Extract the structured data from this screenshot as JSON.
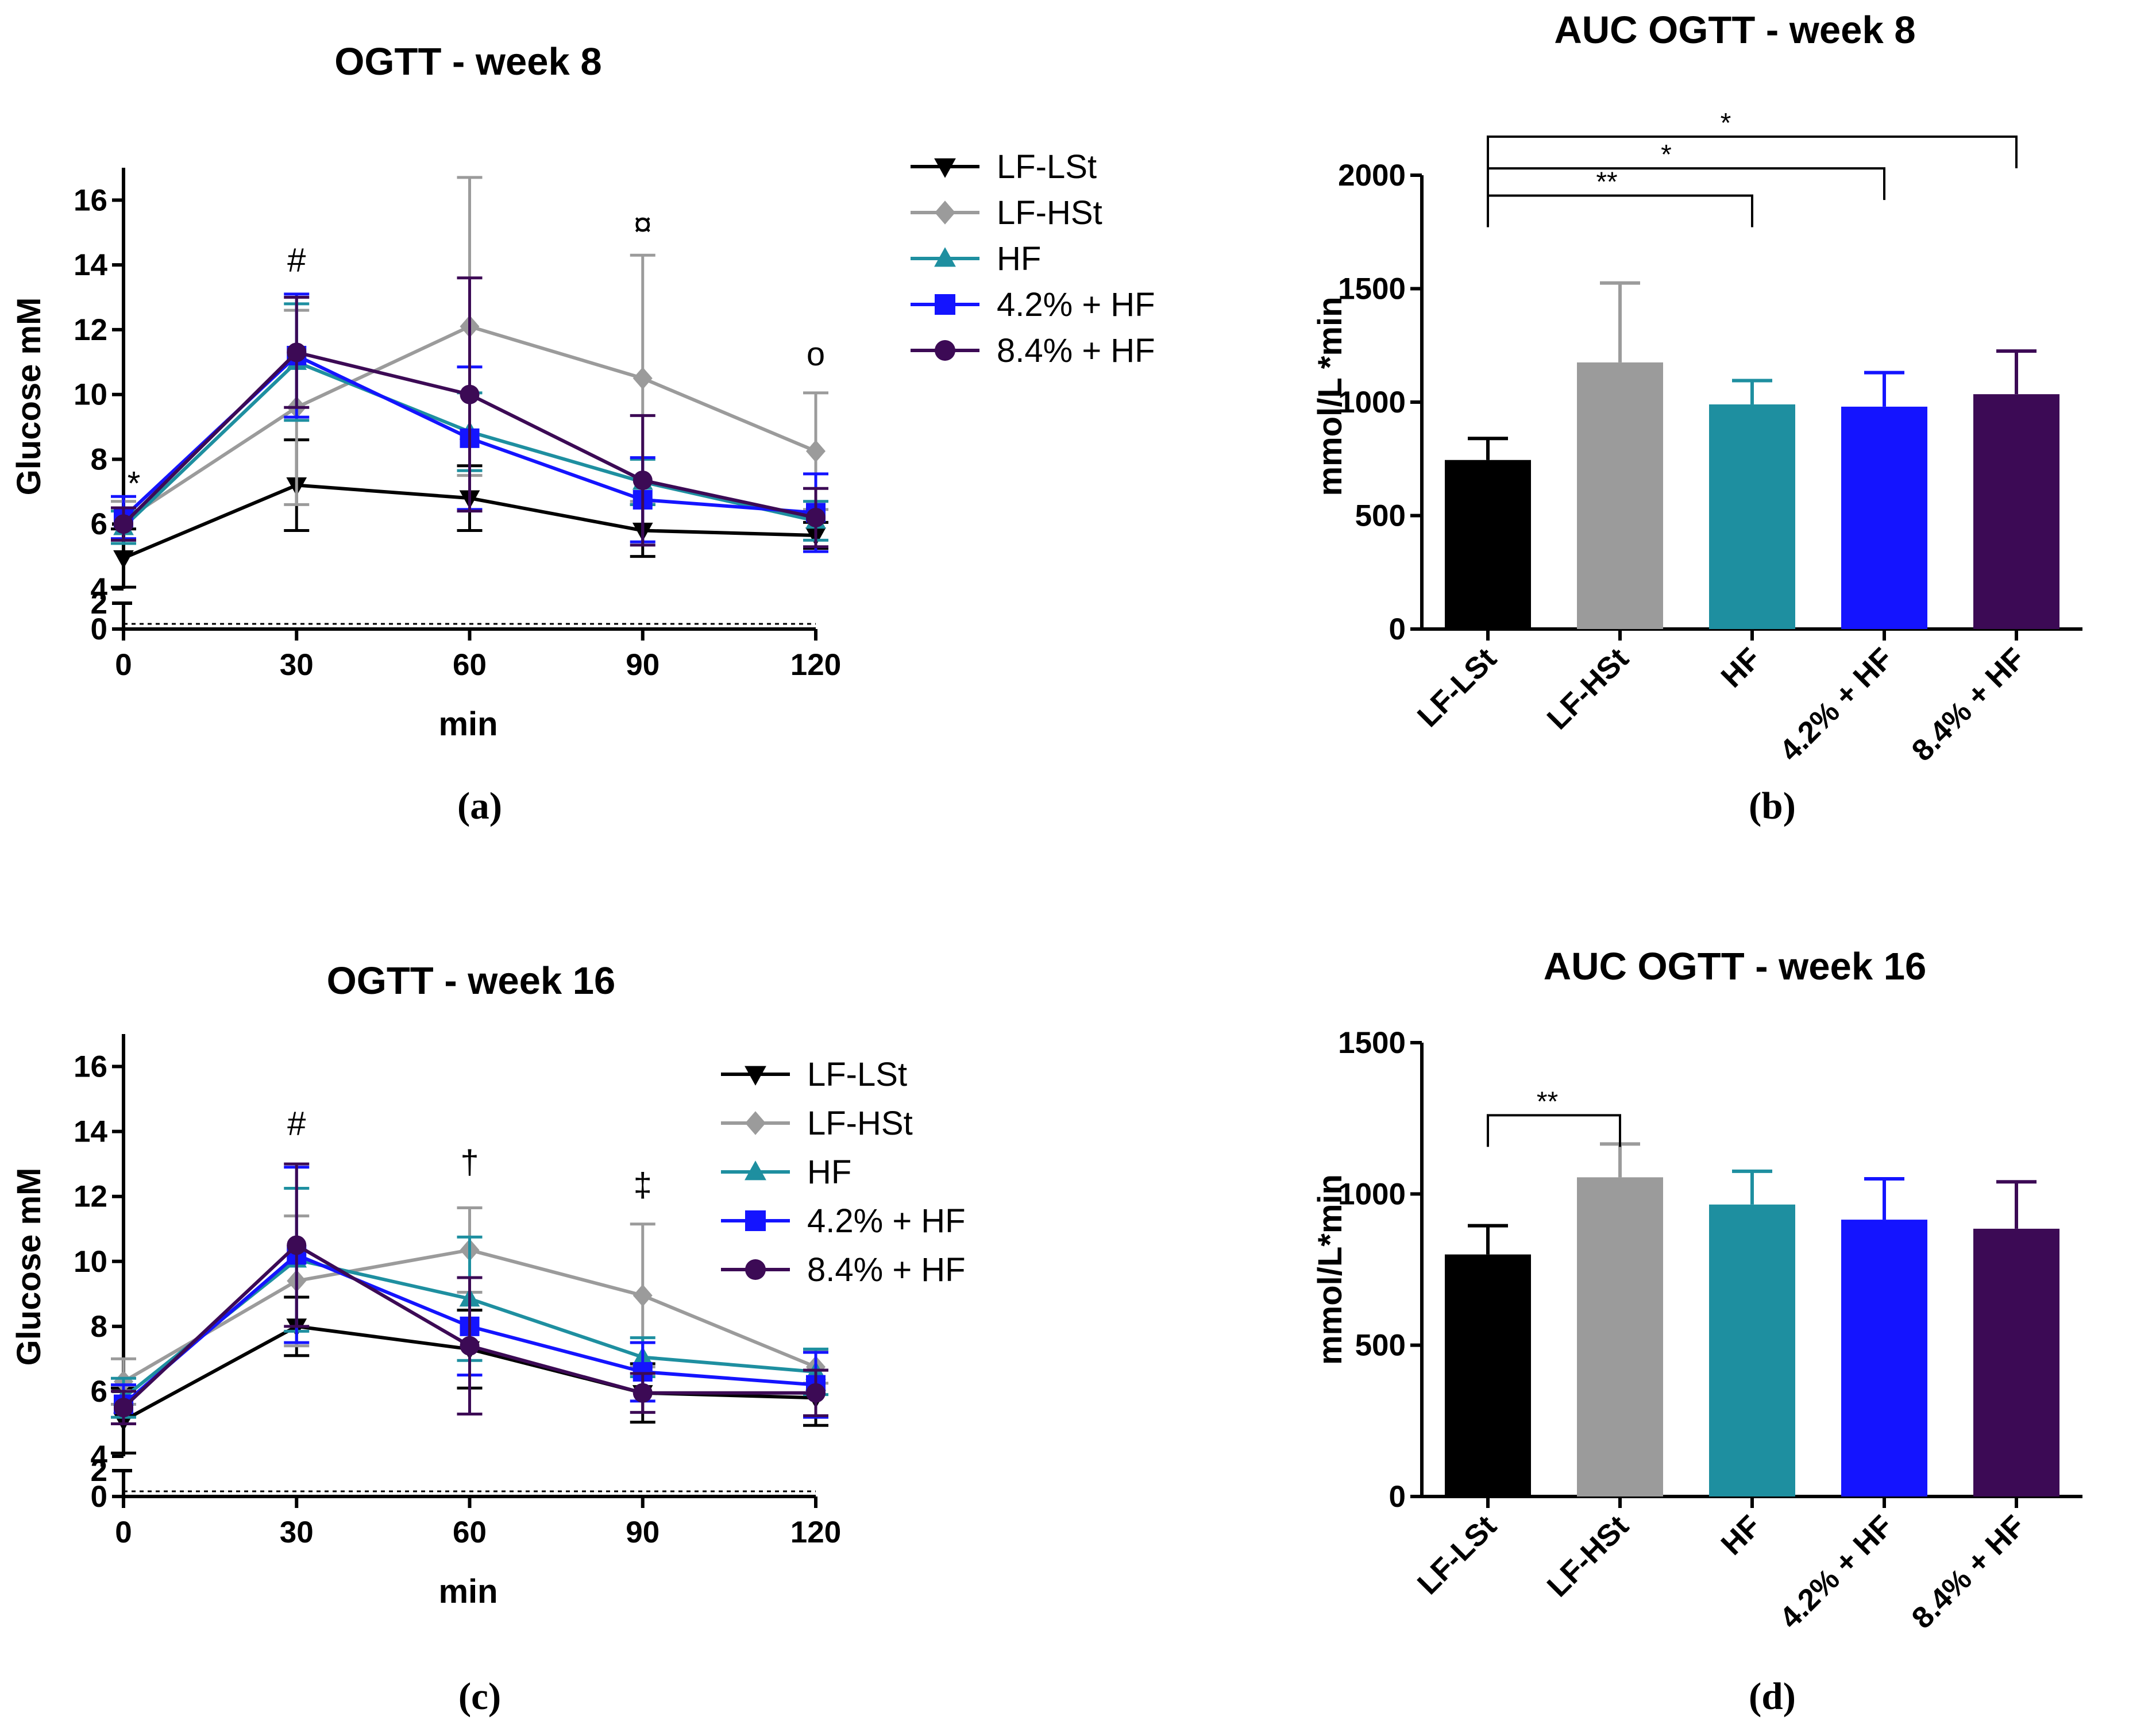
{
  "series_colors": {
    "LF-LSt": "#000000",
    "LF-HSt": "#9b9b9b",
    "HF": "#1e8fa0",
    "4.2% + HF": "#1414ff",
    "8.4% + HF": "#3c0a55"
  },
  "chart_data": [
    {
      "id": "a",
      "type": "line",
      "title": "OGTT - week 8",
      "panel_label": "(a)",
      "xlabel": "min",
      "ylabel": "Glucose mM",
      "x": [
        0,
        30,
        60,
        90,
        120
      ],
      "x_ticks": [
        "0",
        "30",
        "60",
        "90",
        "120"
      ],
      "y_ticks": [
        "0",
        "2",
        "4",
        "6",
        "8",
        "10",
        "12",
        "14",
        "16"
      ],
      "ylim": [
        0,
        17
      ],
      "axis_break": [
        2,
        4
      ],
      "legend": [
        "LF-LSt",
        "LF-HSt",
        "HF",
        "4.2% + HF",
        "8.4% + HF"
      ],
      "series": [
        {
          "name": "LF-LSt",
          "marker": "triangle-down",
          "values": [
            4.95,
            7.2,
            6.8,
            5.8,
            5.65
          ],
          "err": [
            0.9,
            1.4,
            1.0,
            0.8,
            0.4
          ]
        },
        {
          "name": "LF-HSt",
          "marker": "diamond",
          "values": [
            6.1,
            9.6,
            12.1,
            10.5,
            8.25
          ],
          "err": [
            0.6,
            3.0,
            4.6,
            3.8,
            1.8
          ]
        },
        {
          "name": "HF",
          "marker": "triangle-up",
          "values": [
            5.9,
            11.0,
            8.85,
            7.3,
            6.1
          ],
          "err": [
            0.5,
            1.8,
            1.2,
            0.7,
            0.6
          ]
        },
        {
          "name": "4.2% + HF",
          "marker": "square",
          "values": [
            6.2,
            11.2,
            8.65,
            6.75,
            6.35
          ],
          "err": [
            0.65,
            1.9,
            2.2,
            1.3,
            1.2
          ]
        },
        {
          "name": "8.4% + HF",
          "marker": "circle",
          "values": [
            6.0,
            11.3,
            10.0,
            7.35,
            6.2
          ],
          "err": [
            0.5,
            1.7,
            3.6,
            2.0,
            0.9
          ]
        }
      ],
      "annotations": [
        {
          "x": 0,
          "y": 6.9,
          "text": "*"
        },
        {
          "x": 30,
          "y": 13.8,
          "text": "#"
        },
        {
          "x": 90,
          "y": 14.9,
          "text": "¤"
        },
        {
          "x": 120,
          "y": 10.9,
          "text": "o"
        }
      ]
    },
    {
      "id": "b",
      "type": "bar",
      "title": "AUC OGTT - week 8",
      "panel_label": "(b)",
      "ylabel": "mmol/L *min",
      "categories": [
        "LF-LSt",
        "LF-HSt",
        "HF",
        "4.2% + HF",
        "8.4% + HF"
      ],
      "values": [
        745,
        1175,
        990,
        980,
        1035
      ],
      "err": [
        95,
        350,
        105,
        150,
        190
      ],
      "y_ticks": [
        "0",
        "500",
        "1000",
        "1500",
        "2000"
      ],
      "ylim": [
        0,
        2000
      ],
      "comparisons": [
        {
          "from": 0,
          "to": 2,
          "label": "**",
          "level": 1910
        },
        {
          "from": 0,
          "to": 3,
          "label": "*",
          "level": 2030
        },
        {
          "from": 0,
          "to": 4,
          "label": "*",
          "level": 2170
        }
      ]
    },
    {
      "id": "c",
      "type": "line",
      "title": "OGTT - week 16",
      "panel_label": "(c)",
      "xlabel": "min",
      "ylabel": "Glucose mM",
      "x": [
        0,
        30,
        60,
        90,
        120
      ],
      "x_ticks": [
        "0",
        "30",
        "60",
        "90",
        "120"
      ],
      "y_ticks": [
        "0",
        "2",
        "4",
        "6",
        "8",
        "10",
        "12",
        "14",
        "16"
      ],
      "ylim": [
        0,
        17
      ],
      "axis_break": [
        2,
        4
      ],
      "legend": [
        "LF-LSt",
        "LF-HSt",
        "HF",
        "4.2% + HF",
        "8.4% + HF"
      ],
      "series": [
        {
          "name": "LF-LSt",
          "marker": "triangle-down",
          "values": [
            5.1,
            8.0,
            7.3,
            5.95,
            5.8
          ],
          "err": [
            1.0,
            0.9,
            1.2,
            0.9,
            0.85
          ]
        },
        {
          "name": "LF-HSt",
          "marker": "diamond",
          "values": [
            6.3,
            9.4,
            10.35,
            8.95,
            6.75
          ],
          "err": [
            0.7,
            2.0,
            1.3,
            2.2,
            0.5
          ]
        },
        {
          "name": "HF",
          "marker": "triangle-up",
          "values": [
            5.8,
            10.05,
            8.85,
            7.05,
            6.6
          ],
          "err": [
            0.6,
            2.2,
            1.9,
            0.6,
            0.7
          ]
        },
        {
          "name": "4.2% + HF",
          "marker": "square",
          "values": [
            5.6,
            10.2,
            8.0,
            6.6,
            6.2
          ],
          "err": [
            0.6,
            2.7,
            1.5,
            0.9,
            1.0
          ]
        },
        {
          "name": "8.4% + HF",
          "marker": "circle",
          "values": [
            5.5,
            10.5,
            7.4,
            5.95,
            5.95
          ],
          "err": [
            0.5,
            2.5,
            2.1,
            0.6,
            0.7
          ]
        }
      ],
      "annotations": [
        {
          "x": 30,
          "y": 13.9,
          "text": "#"
        },
        {
          "x": 60,
          "y": 12.7,
          "text": "†"
        },
        {
          "x": 90,
          "y": 12.0,
          "text": "‡"
        }
      ]
    },
    {
      "id": "d",
      "type": "bar",
      "title": "AUC OGTT - week 16",
      "panel_label": "(d)",
      "ylabel": "mmol/L*min",
      "categories": [
        "LF-LSt",
        "LF-HSt",
        "HF",
        "4.2% + HF",
        "8.4% + HF"
      ],
      "values": [
        800,
        1055,
        965,
        915,
        885
      ],
      "err": [
        95,
        110,
        110,
        135,
        155
      ],
      "y_ticks": [
        "0",
        "500",
        "1000",
        "1500"
      ],
      "ylim": [
        0,
        1500
      ],
      "comparisons": [
        {
          "from": 0,
          "to": 1,
          "label": "**",
          "level": 1260
        }
      ]
    }
  ]
}
